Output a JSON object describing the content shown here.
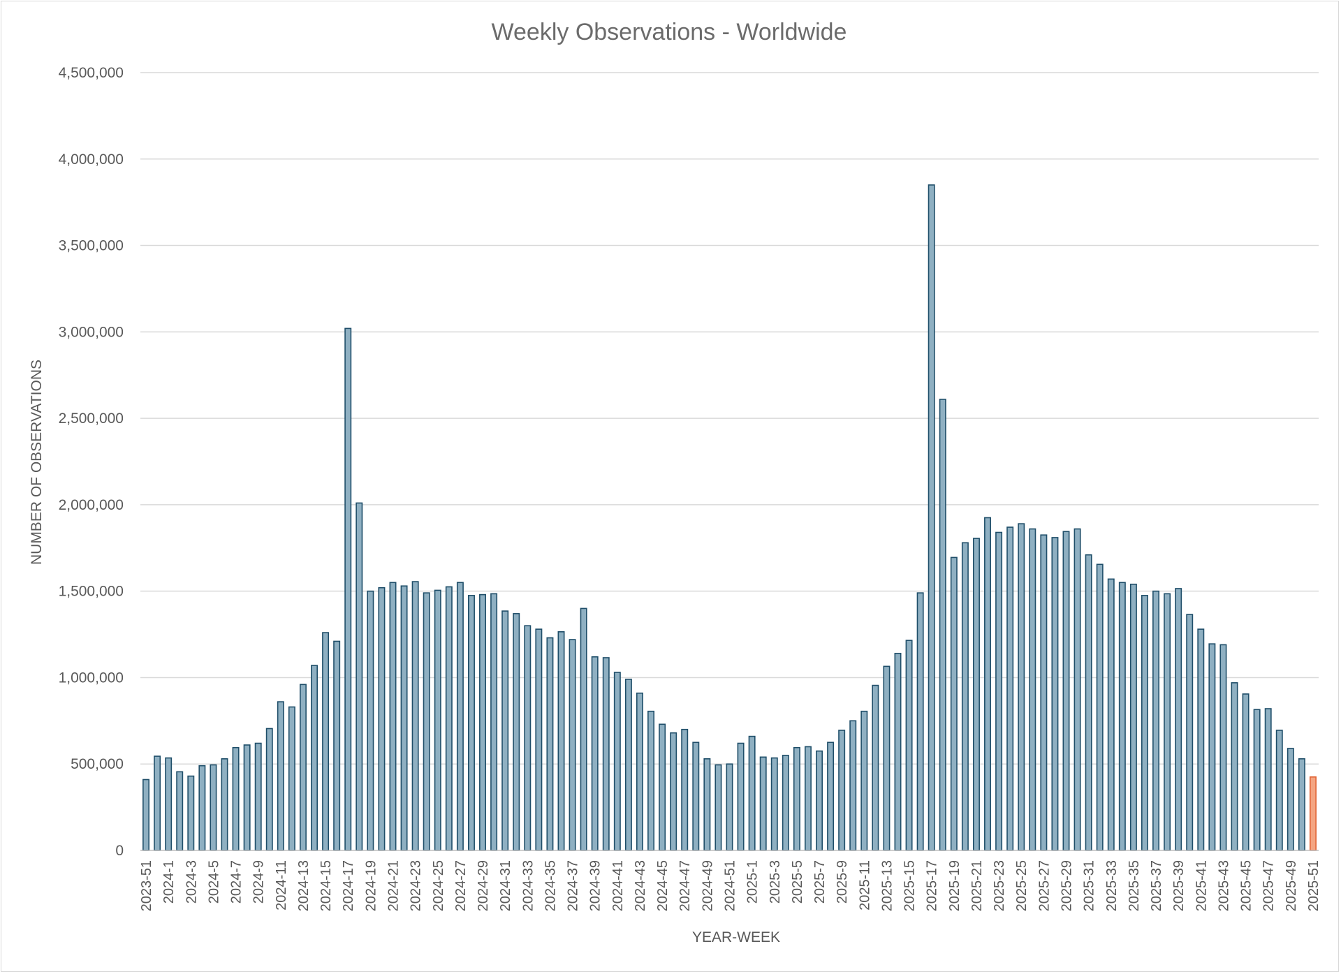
{
  "chart_data": {
    "type": "bar",
    "title": "Weekly Observations - Worldwide",
    "xlabel": "YEAR-WEEK",
    "ylabel": "NUMBER OF OBSERVATIONS",
    "ylim": [
      0,
      4500000
    ],
    "yticks": [
      0,
      500000,
      1000000,
      1500000,
      2000000,
      2500000,
      3000000,
      3500000,
      4000000,
      4500000
    ],
    "ytick_labels": [
      "0",
      "500,000",
      "1,000,000",
      "1,500,000",
      "2,000,000",
      "2,500,000",
      "3,000,000",
      "3,500,000",
      "4,000,000",
      "4,500,000"
    ],
    "grid": true,
    "colors": {
      "bar_fill": "#8fb0c2",
      "bar_stroke": "#1f4e69",
      "highlight_fill": "#f4a582",
      "highlight_stroke": "#e06030",
      "grid": "#d9d9d9",
      "axis": "#bfbfbf"
    },
    "highlight_last": true,
    "categories": [
      "2023-51",
      "2023-52",
      "2024-1",
      "2024-2",
      "2024-3",
      "2024-4",
      "2024-5",
      "2024-6",
      "2024-7",
      "2024-8",
      "2024-9",
      "2024-10",
      "2024-11",
      "2024-12",
      "2024-13",
      "2024-14",
      "2024-15",
      "2024-16",
      "2024-17",
      "2024-18",
      "2024-19",
      "2024-20",
      "2024-21",
      "2024-22",
      "2024-23",
      "2024-24",
      "2024-25",
      "2024-26",
      "2024-27",
      "2024-28",
      "2024-29",
      "2024-30",
      "2024-31",
      "2024-32",
      "2024-33",
      "2024-34",
      "2024-35",
      "2024-36",
      "2024-37",
      "2024-38",
      "2024-39",
      "2024-40",
      "2024-41",
      "2024-42",
      "2024-43",
      "2024-44",
      "2024-45",
      "2024-46",
      "2024-47",
      "2024-48",
      "2024-49",
      "2024-50",
      "2024-51",
      "2024-52",
      "2025-1",
      "2025-2",
      "2025-3",
      "2025-4",
      "2025-5",
      "2025-6",
      "2025-7",
      "2025-8",
      "2025-9",
      "2025-10",
      "2025-11",
      "2025-12",
      "2025-13",
      "2025-14",
      "2025-15",
      "2025-16",
      "2025-17",
      "2025-18",
      "2025-19",
      "2025-20",
      "2025-21",
      "2025-22",
      "2025-23",
      "2025-24",
      "2025-25",
      "2025-26",
      "2025-27",
      "2025-28",
      "2025-29",
      "2025-30",
      "2025-31",
      "2025-32",
      "2025-33",
      "2025-34",
      "2025-35",
      "2025-36",
      "2025-37",
      "2025-38",
      "2025-39",
      "2025-40",
      "2025-41",
      "2025-42",
      "2025-43",
      "2025-44",
      "2025-45",
      "2025-46",
      "2025-47",
      "2025-48",
      "2025-49",
      "2025-50",
      "2025-51"
    ],
    "tick_labels": [
      "2023-51",
      "2024-1",
      "2024-3",
      "2024-5",
      "2024-7",
      "2024-9",
      "2024-11",
      "2024-13",
      "2024-15",
      "2024-17",
      "2024-19",
      "2024-21",
      "2024-23",
      "2024-25",
      "2024-27",
      "2024-29",
      "2024-31",
      "2024-33",
      "2024-35",
      "2024-37",
      "2024-39",
      "2024-41",
      "2024-43",
      "2024-45",
      "2024-47",
      "2024-49",
      "2024-51",
      "2025-1",
      "2025-3",
      "2025-5",
      "2025-7",
      "2025-9",
      "2025-11",
      "2025-13",
      "2025-15",
      "2025-17",
      "2025-19",
      "2025-21",
      "2025-23",
      "2025-25",
      "2025-27",
      "2025-29",
      "2025-31",
      "2025-33",
      "2025-35",
      "2025-37",
      "2025-39",
      "2025-41",
      "2025-43",
      "2025-45",
      "2025-47",
      "2025-49",
      "2025-51"
    ],
    "values": [
      410000,
      545000,
      535000,
      455000,
      430000,
      490000,
      495000,
      530000,
      595000,
      610000,
      620000,
      705000,
      860000,
      830000,
      960000,
      1070000,
      1260000,
      1210000,
      3020000,
      2010000,
      1500000,
      1520000,
      1550000,
      1530000,
      1555000,
      1490000,
      1505000,
      1525000,
      1550000,
      1475000,
      1480000,
      1485000,
      1385000,
      1370000,
      1300000,
      1280000,
      1230000,
      1265000,
      1220000,
      1400000,
      1120000,
      1115000,
      1030000,
      990000,
      910000,
      805000,
      730000,
      680000,
      700000,
      625000,
      530000,
      495000,
      500000,
      620000,
      660000,
      540000,
      535000,
      550000,
      595000,
      600000,
      575000,
      625000,
      695000,
      750000,
      805000,
      955000,
      1065000,
      1140000,
      1215000,
      1490000,
      3850000,
      2610000,
      1695000,
      1780000,
      1805000,
      1925000,
      1840000,
      1870000,
      1890000,
      1860000,
      1825000,
      1810000,
      1845000,
      1860000,
      1710000,
      1655000,
      1570000,
      1550000,
      1540000,
      1475000,
      1500000,
      1485000,
      1515000,
      1365000,
      1280000,
      1195000,
      1190000,
      970000,
      905000,
      815000,
      820000,
      695000,
      590000,
      530000,
      425000
    ]
  }
}
